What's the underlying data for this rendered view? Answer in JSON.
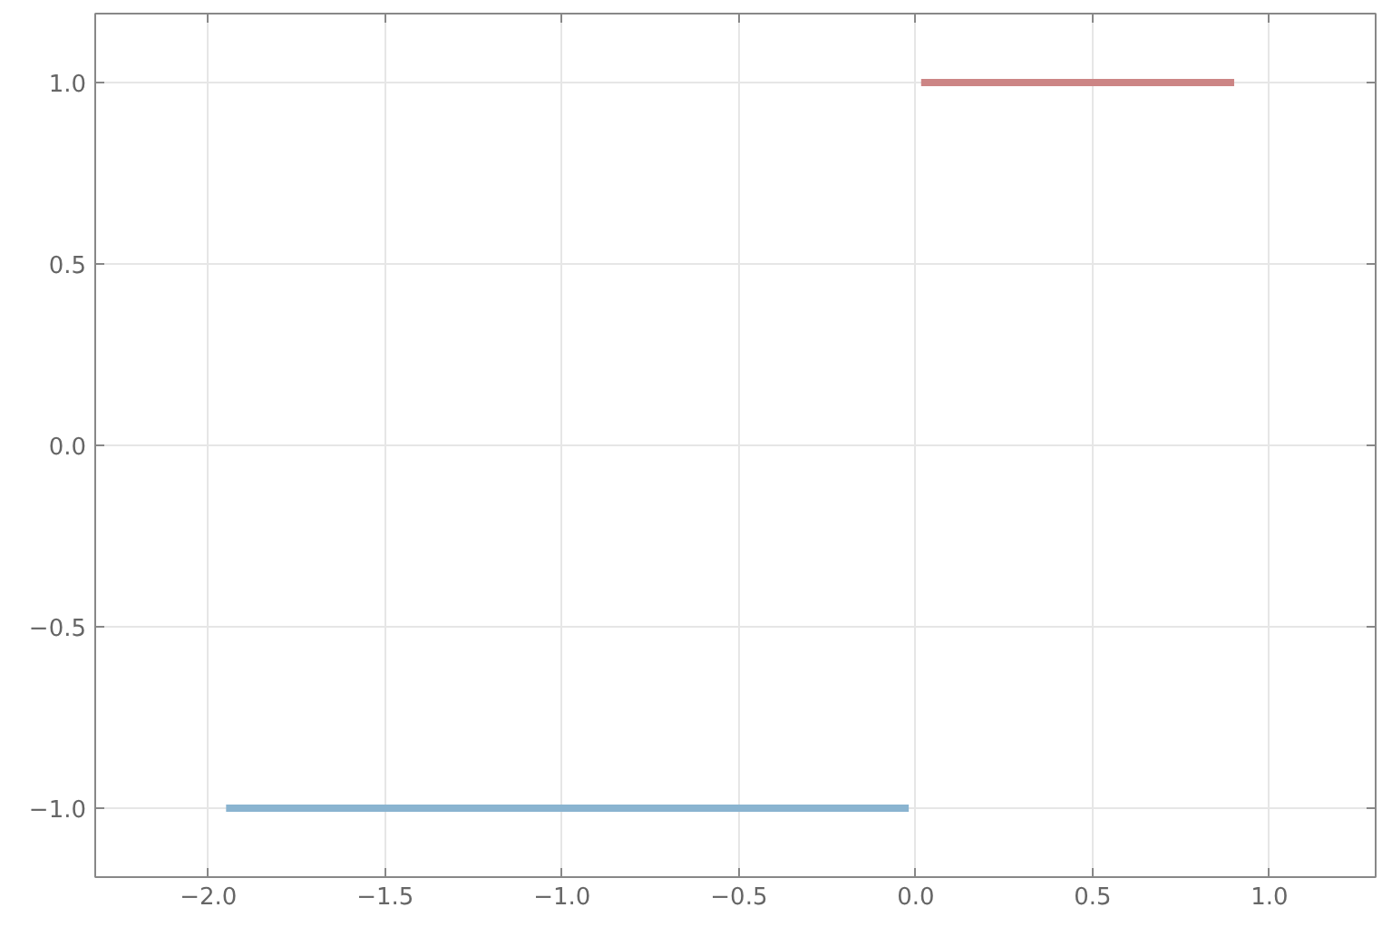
{
  "chart_data": {
    "type": "line",
    "series": [
      {
        "color": "#8ab4d0",
        "x": [
          -1.95,
          -0.02
        ],
        "values": [
          -1.0,
          -1.0
        ]
      },
      {
        "color": "#cc8585",
        "x": [
          0.015,
          0.9
        ],
        "values": [
          1.0,
          1.0
        ]
      }
    ],
    "xlim": [
      -2.32,
      1.3
    ],
    "ylim": [
      -1.19,
      1.19
    ],
    "xticks": [
      {
        "value": -2.0,
        "label": "−2.0"
      },
      {
        "value": -1.5,
        "label": "−1.5"
      },
      {
        "value": -1.0,
        "label": "−1.0"
      },
      {
        "value": -0.5,
        "label": "−0.5"
      },
      {
        "value": 0.0,
        "label": "0.0"
      },
      0.5,
      {
        "value": 1.0,
        "label": "1.0"
      }
    ],
    "yticks": [
      {
        "value": -1.0,
        "label": "−1.0"
      },
      {
        "value": -0.5,
        "label": "−0.5"
      },
      {
        "value": 0.0,
        "label": "0.0"
      },
      0.5,
      {
        "value": 1.0,
        "label": "1.0"
      }
    ],
    "grid": true,
    "marker": "none",
    "line_style": "solid"
  }
}
